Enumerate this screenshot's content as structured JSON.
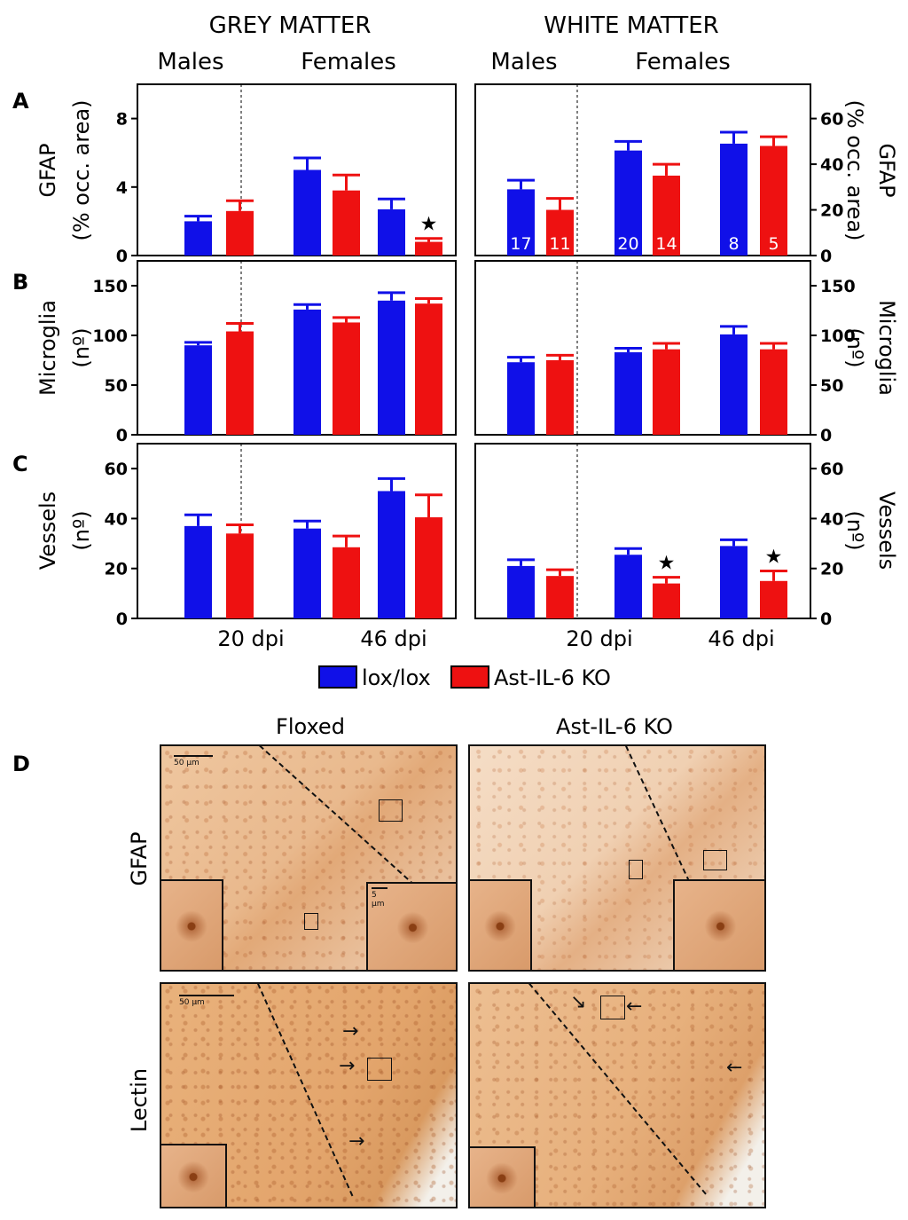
{
  "headers": {
    "grey": "GREY MATTER",
    "white": "WHITE MATTER",
    "males": "Males",
    "females": "Females"
  },
  "panel_labels": {
    "a": "A",
    "b": "B",
    "c": "C",
    "d": "D"
  },
  "axis": {
    "gfap_line1": "GFAP",
    "gfap_line2": "(% occ. area)",
    "microglia_line1": "Microglia",
    "microglia_line2": "(nº)",
    "vessels_line1": "Vessels",
    "vessels_line2": "(nº)"
  },
  "x_ticks": {
    "dpi20": "20 dpi",
    "dpi46": "46 dpi"
  },
  "legend": {
    "lox": "lox/lox",
    "ko": "Ast-IL-6 KO"
  },
  "colors": {
    "lox": "#1010e8",
    "ko": "#ee1111"
  },
  "micro": {
    "floxed": "Floxed",
    "ko": "Ast-IL-6 KO",
    "row_gfap": "GFAP",
    "row_lectin": "Lectin",
    "scale_50": "50 µm",
    "scale_5": "5 µm"
  },
  "chart_data": [
    {
      "type": "bar",
      "panel": "A",
      "region": "grey matter",
      "ylabel": "GFAP (% occ. area)",
      "ylim": [
        0,
        10
      ],
      "yticks": [
        0,
        4,
        8
      ],
      "groups": [
        "Males 20 dpi",
        "Females 20 dpi",
        "Females 46 dpi"
      ],
      "series": [
        {
          "name": "lox/lox",
          "values": [
            2.0,
            5.0,
            2.7
          ],
          "errors": [
            0.3,
            0.7,
            0.6
          ]
        },
        {
          "name": "Ast-IL-6 KO",
          "values": [
            2.6,
            3.8,
            0.8
          ],
          "errors": [
            0.6,
            0.9,
            0.2
          ]
        }
      ],
      "significant": [
        [
          1,
          2
        ]
      ]
    },
    {
      "type": "bar",
      "panel": "A",
      "region": "white matter",
      "ylabel": "GFAP (% occ. area)",
      "ylim": [
        0,
        75
      ],
      "yticks": [
        0,
        20,
        40,
        60
      ],
      "groups": [
        "Males 20 dpi",
        "Females 20 dpi",
        "Females 46 dpi"
      ],
      "series": [
        {
          "name": "lox/lox",
          "values": [
            29,
            46,
            49
          ],
          "errors": [
            4,
            4,
            5
          ],
          "n": [
            "17",
            "20",
            "8"
          ]
        },
        {
          "name": "Ast-IL-6 KO",
          "values": [
            20,
            35,
            48
          ],
          "errors": [
            5,
            5,
            4
          ],
          "n": [
            "11",
            "14",
            "5"
          ]
        }
      ],
      "significant": []
    },
    {
      "type": "bar",
      "panel": "B",
      "region": "grey matter",
      "ylabel": "Microglia (nº)",
      "ylim": [
        0,
        175
      ],
      "yticks": [
        0,
        50,
        100,
        150
      ],
      "groups": [
        "Males 20 dpi",
        "Females 20 dpi",
        "Females 46 dpi"
      ],
      "series": [
        {
          "name": "lox/lox",
          "values": [
            90,
            126,
            135
          ],
          "errors": [
            3,
            5,
            8
          ]
        },
        {
          "name": "Ast-IL-6 KO",
          "values": [
            104,
            113,
            132
          ],
          "errors": [
            8,
            5,
            5
          ]
        }
      ],
      "significant": []
    },
    {
      "type": "bar",
      "panel": "B",
      "region": "white matter",
      "ylabel": "Microglia (nº)",
      "ylim": [
        0,
        175
      ],
      "yticks": [
        0,
        50,
        100,
        150
      ],
      "groups": [
        "Males 20 dpi",
        "Females 20 dpi",
        "Females 46 dpi"
      ],
      "series": [
        {
          "name": "lox/lox",
          "values": [
            73,
            83,
            101
          ],
          "errors": [
            5,
            4,
            8
          ]
        },
        {
          "name": "Ast-IL-6 KO",
          "values": [
            75,
            86,
            86
          ],
          "errors": [
            5,
            6,
            6
          ]
        }
      ],
      "significant": []
    },
    {
      "type": "bar",
      "panel": "C",
      "region": "grey matter",
      "ylabel": "Vessels (nº)",
      "ylim": [
        0,
        70
      ],
      "yticks": [
        0,
        20,
        40,
        60
      ],
      "xticks": [
        "20 dpi",
        "46 dpi"
      ],
      "groups": [
        "Males 20 dpi",
        "Females 20 dpi",
        "Females 46 dpi"
      ],
      "series": [
        {
          "name": "lox/lox",
          "values": [
            37,
            36,
            51
          ],
          "errors": [
            4.5,
            3,
            5
          ]
        },
        {
          "name": "Ast-IL-6 KO",
          "values": [
            34,
            28.5,
            40.5
          ],
          "errors": [
            3.5,
            4.5,
            9
          ]
        }
      ],
      "significant": []
    },
    {
      "type": "bar",
      "panel": "C",
      "region": "white matter",
      "ylabel": "Vessels (nº)",
      "ylim": [
        0,
        70
      ],
      "yticks": [
        0,
        20,
        40,
        60
      ],
      "xticks": [
        "20 dpi",
        "46 dpi"
      ],
      "groups": [
        "Males 20 dpi",
        "Females 20 dpi",
        "Females 46 dpi"
      ],
      "series": [
        {
          "name": "lox/lox",
          "values": [
            21,
            25.5,
            29
          ],
          "errors": [
            2.5,
            2.5,
            2.5
          ]
        },
        {
          "name": "Ast-IL-6 KO",
          "values": [
            17,
            14,
            15
          ],
          "errors": [
            2.5,
            2.5,
            4
          ]
        }
      ],
      "significant": [
        [
          1,
          1
        ],
        [
          1,
          2
        ]
      ]
    }
  ]
}
